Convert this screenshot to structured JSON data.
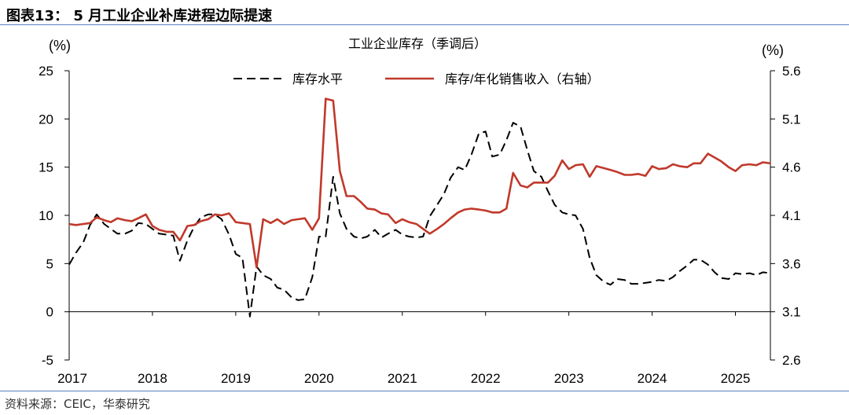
{
  "figure_title": "图表13： 5 月工业企业补库进程边际提速",
  "source": "资料来源：CEIC，华泰研究",
  "chart_data": {
    "type": "line",
    "title": "工业企业库存（季调后）",
    "left_unit": "(%)",
    "right_unit": "(%)",
    "x_range": [
      2017.0,
      2025.42
    ],
    "x_tick_labels": [
      "2017",
      "2018",
      "2019",
      "2020",
      "2021",
      "2022",
      "2023",
      "2024",
      "2025"
    ],
    "left_axis": {
      "range": [
        -5,
        25
      ],
      "ticks": [
        "-5",
        "0",
        "5",
        "10",
        "15",
        "20",
        "25"
      ]
    },
    "right_axis": {
      "range": [
        2.6,
        5.6
      ],
      "ticks": [
        "2.6",
        "3.1",
        "3.6",
        "4.1",
        "4.6",
        "5.1",
        "5.6"
      ]
    },
    "legend_position": "top",
    "series": [
      {
        "name": "库存水平",
        "axis": "left",
        "style": "dashed",
        "color": "#000000",
        "x": [
          2017.0,
          2017.08,
          2017.17,
          2017.25,
          2017.33,
          2017.42,
          2017.5,
          2017.58,
          2017.67,
          2017.75,
          2017.83,
          2017.92,
          2018.0,
          2018.08,
          2018.17,
          2018.25,
          2018.33,
          2018.42,
          2018.5,
          2018.58,
          2018.67,
          2018.75,
          2018.83,
          2018.92,
          2019.0,
          2019.08,
          2019.17,
          2019.25,
          2019.33,
          2019.42,
          2019.5,
          2019.58,
          2019.67,
          2019.75,
          2019.83,
          2019.92,
          2020.0,
          2020.08,
          2020.17,
          2020.25,
          2020.33,
          2020.42,
          2020.5,
          2020.58,
          2020.67,
          2020.75,
          2020.83,
          2020.92,
          2021.0,
          2021.08,
          2021.17,
          2021.25,
          2021.33,
          2021.42,
          2021.5,
          2021.58,
          2021.67,
          2021.75,
          2021.83,
          2021.92,
          2022.0,
          2022.08,
          2022.17,
          2022.25,
          2022.33,
          2022.42,
          2022.5,
          2022.58,
          2022.67,
          2022.75,
          2022.83,
          2022.92,
          2023.0,
          2023.08,
          2023.17,
          2023.25,
          2023.33,
          2023.42,
          2023.5,
          2023.58,
          2023.67,
          2023.75,
          2023.83,
          2023.92,
          2024.0,
          2024.08,
          2024.17,
          2024.25,
          2024.33,
          2024.42,
          2024.5,
          2024.58,
          2024.67,
          2024.75,
          2024.83,
          2024.92,
          2025.0,
          2025.08,
          2025.17,
          2025.25,
          2025.33,
          2025.42
        ],
        "values": [
          4.9,
          6.1,
          7.2,
          9.0,
          10.1,
          9.1,
          8.6,
          8.1,
          8.1,
          8.4,
          9.2,
          9.1,
          8.6,
          8.1,
          8.0,
          7.9,
          5.3,
          7.4,
          8.8,
          9.8,
          10.1,
          10.1,
          9.6,
          8.0,
          6.0,
          5.6,
          -0.5,
          4.7,
          3.8,
          3.4,
          2.5,
          2.3,
          1.5,
          1.2,
          1.3,
          3.6,
          7.8,
          7.8,
          14.0,
          10.2,
          8.6,
          7.8,
          7.6,
          7.8,
          8.5,
          7.7,
          8.1,
          8.5,
          8.0,
          7.8,
          7.7,
          7.8,
          9.9,
          11.1,
          12.2,
          13.9,
          15.0,
          14.7,
          16.3,
          18.5,
          18.7,
          16.1,
          16.3,
          17.8,
          19.6,
          19.2,
          16.8,
          14.6,
          14.0,
          12.5,
          11.1,
          10.3,
          10.1,
          10.0,
          8.6,
          5.6,
          3.8,
          3.1,
          2.8,
          3.4,
          3.3,
          2.9,
          2.9,
          3.0,
          3.1,
          3.3,
          3.2,
          3.6,
          4.2,
          4.8,
          5.4,
          5.4,
          4.9,
          4.1,
          3.5,
          3.4,
          4.0,
          3.9,
          4.0,
          3.8,
          4.1,
          4.0
        ]
      },
      {
        "name": "库存/年化销售收入（右轴）",
        "axis": "right",
        "style": "solid",
        "color": "#c0392b",
        "x": [
          2017.0,
          2017.08,
          2017.17,
          2017.25,
          2017.33,
          2017.42,
          2017.5,
          2017.58,
          2017.67,
          2017.75,
          2017.83,
          2017.92,
          2018.0,
          2018.08,
          2018.17,
          2018.25,
          2018.33,
          2018.42,
          2018.5,
          2018.58,
          2018.67,
          2018.75,
          2018.83,
          2018.92,
          2019.0,
          2019.08,
          2019.17,
          2019.25,
          2019.33,
          2019.42,
          2019.5,
          2019.58,
          2019.67,
          2019.75,
          2019.83,
          2019.92,
          2020.0,
          2020.08,
          2020.17,
          2020.25,
          2020.33,
          2020.42,
          2020.5,
          2020.58,
          2020.67,
          2020.75,
          2020.83,
          2020.92,
          2021.0,
          2021.08,
          2021.17,
          2021.25,
          2021.33,
          2021.42,
          2021.5,
          2021.58,
          2021.67,
          2021.75,
          2021.83,
          2021.92,
          2022.0,
          2022.08,
          2022.17,
          2022.25,
          2022.33,
          2022.42,
          2022.5,
          2022.58,
          2022.67,
          2022.75,
          2022.83,
          2022.92,
          2023.0,
          2023.08,
          2023.17,
          2023.25,
          2023.33,
          2023.42,
          2023.5,
          2023.58,
          2023.67,
          2023.75,
          2023.83,
          2023.92,
          2024.0,
          2024.08,
          2024.17,
          2024.25,
          2024.33,
          2024.42,
          2024.5,
          2024.58,
          2024.67,
          2024.75,
          2024.83,
          2024.92,
          2025.0,
          2025.08,
          2025.17,
          2025.25,
          2025.33,
          2025.42
        ],
        "values": [
          4.01,
          4.0,
          4.01,
          4.02,
          4.08,
          4.05,
          4.03,
          4.07,
          4.05,
          4.04,
          4.07,
          4.11,
          3.99,
          3.95,
          3.93,
          3.93,
          3.84,
          3.99,
          4.0,
          4.04,
          4.06,
          4.11,
          4.1,
          4.12,
          4.03,
          4.02,
          4.01,
          3.56,
          4.06,
          4.02,
          4.06,
          4.01,
          4.05,
          4.06,
          4.07,
          3.95,
          4.07,
          5.31,
          5.29,
          4.56,
          4.3,
          4.3,
          4.24,
          4.17,
          4.16,
          4.12,
          4.11,
          4.02,
          4.06,
          4.03,
          4.01,
          3.96,
          3.91,
          3.96,
          4.01,
          4.07,
          4.13,
          4.16,
          4.17,
          4.16,
          4.15,
          4.13,
          4.13,
          4.17,
          4.54,
          4.41,
          4.39,
          4.44,
          4.44,
          4.44,
          4.51,
          4.67,
          4.58,
          4.62,
          4.63,
          4.5,
          4.61,
          4.59,
          4.57,
          4.55,
          4.52,
          4.52,
          4.53,
          4.51,
          4.61,
          4.58,
          4.59,
          4.63,
          4.61,
          4.6,
          4.64,
          4.64,
          4.74,
          4.7,
          4.66,
          4.6,
          4.56,
          4.62,
          4.63,
          4.62,
          4.65,
          4.64
        ]
      }
    ]
  }
}
